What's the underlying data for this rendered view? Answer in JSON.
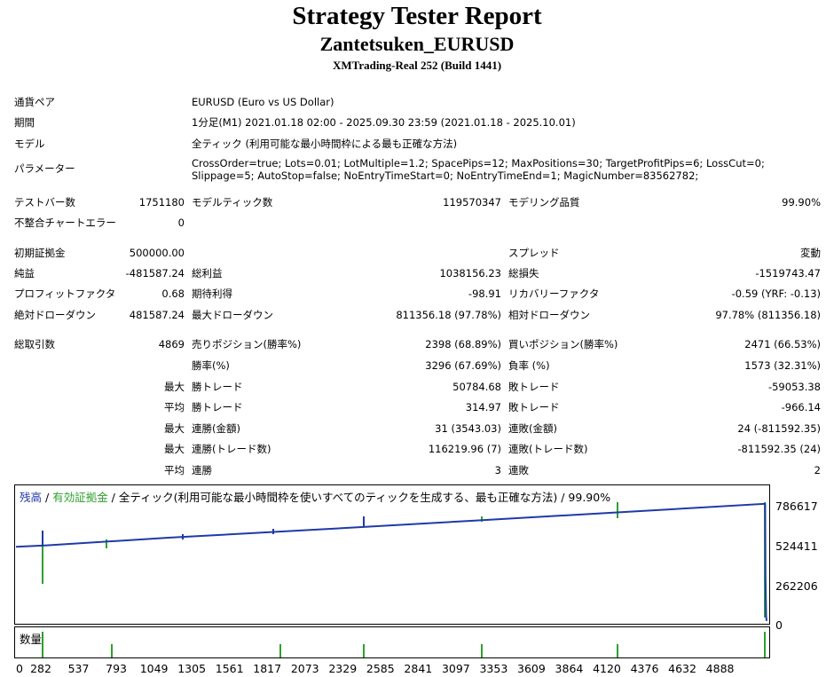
{
  "header": {
    "title": "Strategy Tester Report",
    "ea_name": "Zantetsuken_EURUSD",
    "server": "XMTrading-Real 252 (Build 1441)"
  },
  "info": {
    "pair_label": "通貨ペア",
    "pair_value": "EURUSD (Euro vs US Dollar)",
    "period_label": "期間",
    "period_value": "1分足(M1) 2021.01.18 02:00 - 2025.09.30 23:59 (2021.01.18 - 2025.10.01)",
    "model_label": "モデル",
    "model_value": "全ティック (利用可能な最小時間枠による最も正確な方法)",
    "param_label": "パラメーター",
    "param_value": "CrossOrder=true; Lots=0.01; LotMultiple=1.2; SpacePips=12; MaxPositions=30; TargetProfitPips=6; LossCut=0; Slippage=5; AutoStop=false; NoEntryTimeStart=0; NoEntryTimeEnd=1; MagicNumber=83562782;"
  },
  "stats": {
    "bars_label": "テストバー数",
    "bars_value": "1751180",
    "ticks_label": "モデルティック数",
    "ticks_value": "119570347",
    "quality_label": "モデリング品質",
    "quality_value": "99.90%",
    "mismatch_label": "不整合チャートエラー",
    "mismatch_value": "0",
    "deposit_label": "初期証拠金",
    "deposit_value": "500000.00",
    "spread_label": "スプレッド",
    "spread_value": "変動",
    "net_label": "純益",
    "net_value": "-481587.24",
    "gross_profit_label": "総利益",
    "gross_profit_value": "1038156.23",
    "gross_loss_label": "総損失",
    "gross_loss_value": "-1519743.47",
    "pf_label": "プロフィットファクタ",
    "pf_value": "0.68",
    "expected_label": "期待利得",
    "expected_value": "-98.91",
    "recovery_label": "リカバリーファクタ",
    "recovery_value": "-0.59 (YRF: -0.13)",
    "abs_dd_label": "絶対ドローダウン",
    "abs_dd_value": "481587.24",
    "max_dd_label": "最大ドローダウン",
    "max_dd_value": "811356.18 (97.78%)",
    "rel_dd_label": "相対ドローダウン",
    "rel_dd_value": "97.78% (811356.18)",
    "total_trades_label": "総取引数",
    "total_trades_value": "4869",
    "short_label": "売りポジション(勝率%)",
    "short_value": "2398 (68.89%)",
    "long_label": "買いポジション(勝率%)",
    "long_value": "2471 (66.53%)",
    "win_rate_label": "勝率(%)",
    "win_rate_value": "3296 (67.69%)",
    "loss_rate_label": "負率 (%)",
    "loss_rate_value": "1573 (32.31%)",
    "max_label": "最大",
    "avg_label": "平均",
    "win_trade_label": "勝トレード",
    "loss_trade_label": "敗トレード",
    "max_win_value": "50784.68",
    "max_loss_value": "-59053.38",
    "avg_win_value": "314.97",
    "avg_loss_value": "-966.14",
    "consec_win_amt_label": "連勝(金額)",
    "consec_win_amt_value": "31 (3543.03)",
    "consec_loss_amt_label": "連敗(金額)",
    "consec_loss_amt_value": "24 (-811592.35)",
    "consec_win_cnt_label": "連勝(トレード数)",
    "consec_win_cnt_value": "116219.96 (7)",
    "consec_loss_cnt_label": "連敗(トレード数)",
    "consec_loss_cnt_value": "-811592.35 (24)",
    "avg_consec_win_label": "連勝",
    "avg_consec_win_value": "3",
    "avg_consec_loss_label": "連敗",
    "avg_consec_loss_value": "2"
  },
  "chart_legend": {
    "balance": "残高",
    "sep1": " / ",
    "equity": "有効証拠金",
    "sep2": " / ",
    "rest": "全ティック(利用可能な最小時間枠を使いすべてのティックを生成する、最も正確な方法) / 99.90%",
    "balance_color": "#1f3aa8",
    "equity_color": "#2ea02e"
  },
  "volume_label": "数量",
  "chart_data": {
    "type": "line",
    "xlim": [
      0,
      4869
    ],
    "ylim": [
      0,
      900000
    ],
    "x_ticks": [
      "0",
      "282",
      "537",
      "793",
      "1049",
      "1305",
      "1561",
      "1817",
      "2073",
      "2329",
      "2585",
      "2841",
      "3097",
      "3353",
      "3609",
      "3864",
      "4120",
      "4376",
      "4632",
      "4888"
    ],
    "y_ticks": [
      "786617",
      "524411",
      "262206",
      "0"
    ],
    "series": [
      {
        "x": [
          0,
          200,
          1000,
          2000,
          3000,
          4000,
          4860,
          4862,
          4866,
          4869
        ],
        "values": [
          500000,
          510000,
          560000,
          615000,
          672000,
          730000,
          780000,
          300000,
          50000,
          18413
        ]
      }
    ]
  }
}
